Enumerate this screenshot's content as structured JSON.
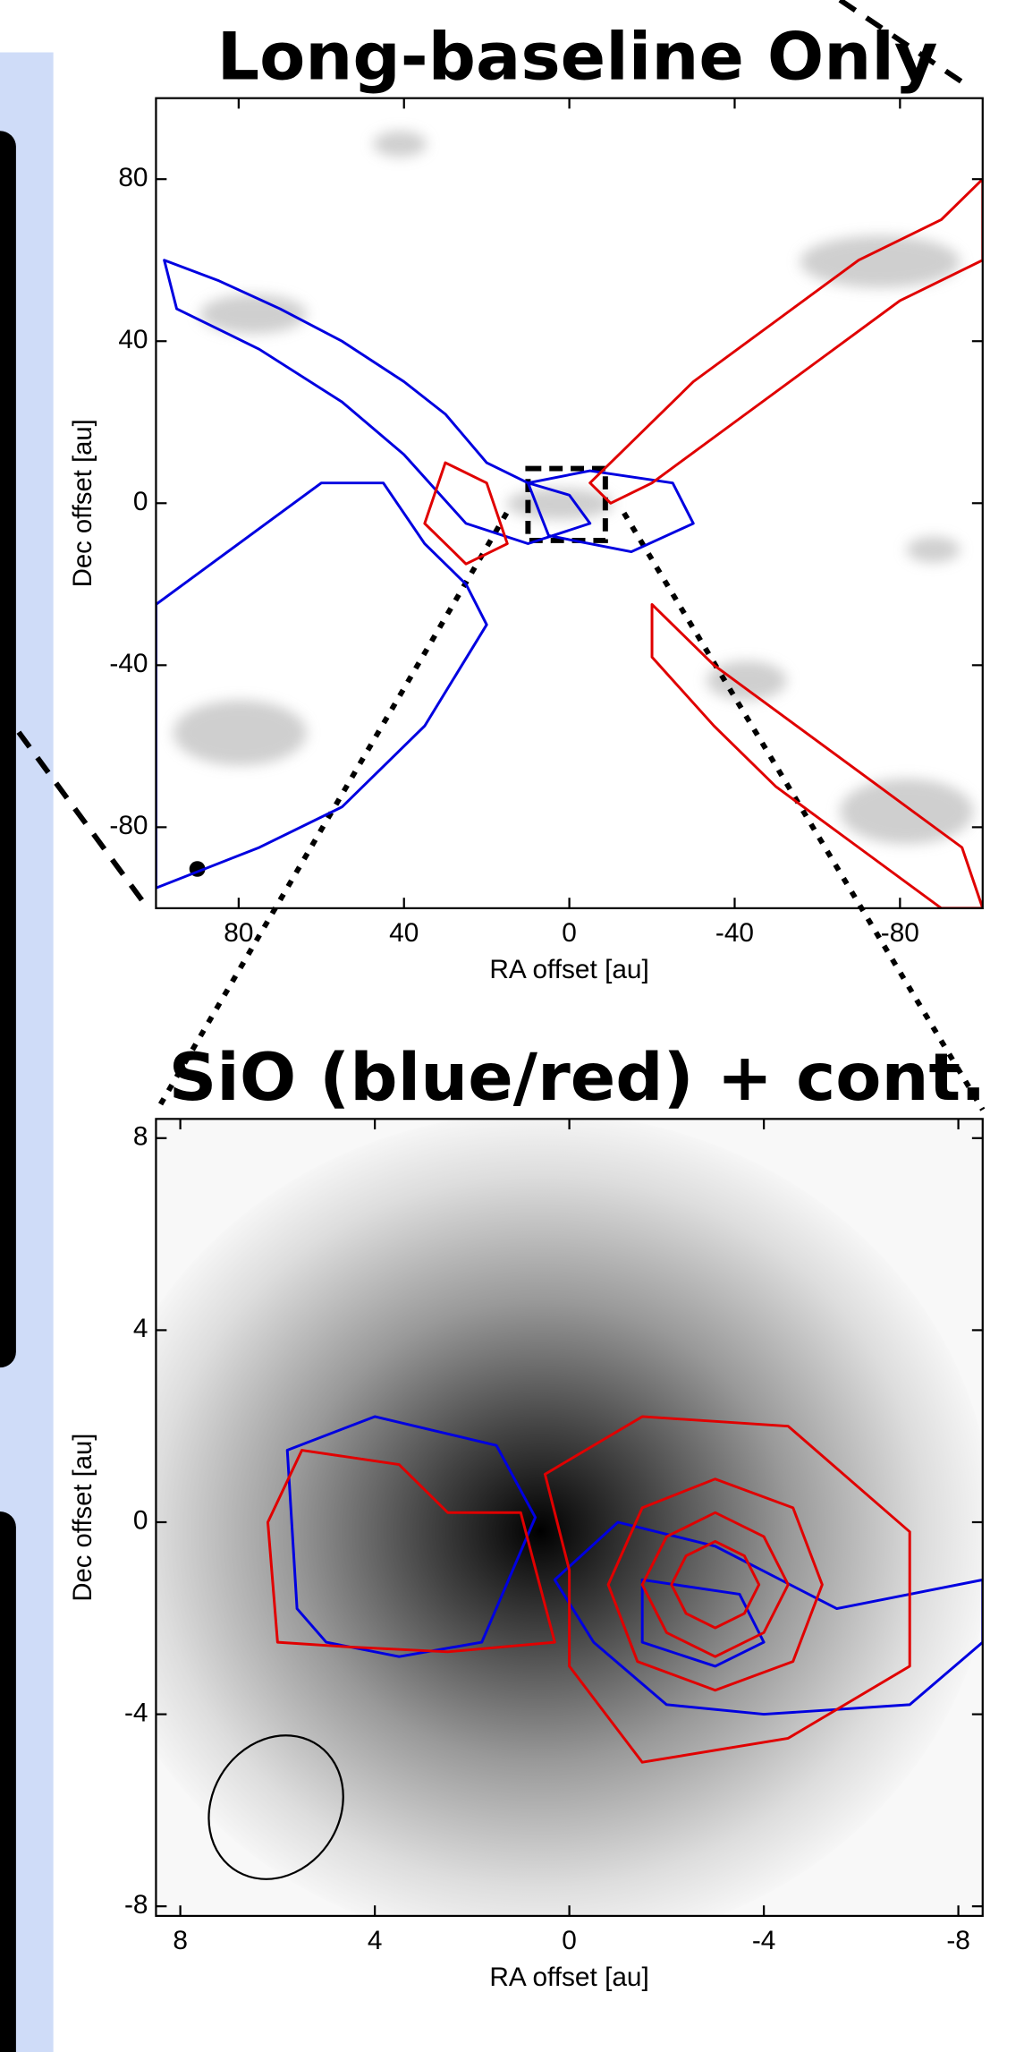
{
  "chart_data": [
    {
      "type": "contour",
      "title": "Long-baseline Only",
      "xlabel": "RA offset [au]",
      "ylabel": "Dec offset [au]",
      "xlim": [
        100,
        -100
      ],
      "ylim": [
        -100,
        100
      ],
      "xticks": [
        80,
        40,
        0,
        -40,
        -80
      ],
      "yticks": [
        -80,
        -40,
        0,
        40,
        80
      ],
      "series": [
        {
          "color": "#0000e0",
          "x": [
            98,
            85,
            70,
            55,
            40,
            30,
            20,
            10,
            0,
            -5,
            10,
            25,
            40,
            55,
            75,
            95
          ],
          "y": [
            60,
            55,
            48,
            40,
            30,
            22,
            10,
            5,
            2,
            -5,
            -10,
            -5,
            12,
            25,
            38,
            48
          ]
        },
        {
          "color": "#0000e0",
          "x": [
            100,
            80,
            60,
            45,
            35,
            25,
            20,
            35,
            55,
            75,
            100
          ],
          "y": [
            -25,
            -10,
            5,
            5,
            -10,
            -20,
            -30,
            -55,
            -75,
            -85,
            -95
          ]
        },
        {
          "color": "#0000e0",
          "x": [
            10,
            -5,
            -25,
            -30,
            -15,
            5
          ],
          "y": [
            5,
            8,
            5,
            -5,
            -12,
            -8
          ]
        },
        {
          "color": "#e00000",
          "x": [
            -5,
            -15,
            -30,
            -50,
            -70,
            -90,
            -100,
            -100,
            -80,
            -60,
            -40,
            -20,
            -10
          ],
          "y": [
            5,
            15,
            30,
            45,
            60,
            70,
            80,
            60,
            50,
            35,
            20,
            5,
            0
          ]
        },
        {
          "color": "#e00000",
          "x": [
            -20,
            -35,
            -55,
            -75,
            -95,
            -100,
            -90,
            -70,
            -50,
            -35,
            -20
          ],
          "y": [
            -25,
            -40,
            -55,
            -70,
            -85,
            -100,
            -100,
            -85,
            -70,
            -55,
            -38
          ]
        },
        {
          "color": "#e00000",
          "x": [
            30,
            20,
            15,
            25,
            35
          ],
          "y": [
            10,
            5,
            -10,
            -15,
            -5
          ]
        }
      ]
    },
    {
      "type": "contour",
      "title": "SiO (blue/red) + cont.",
      "xlabel": "RA offset [au]",
      "ylabel": "Dec offset [au]",
      "xlim": [
        8.5,
        -8.5
      ],
      "ylim": [
        -8.2,
        8.4
      ],
      "xticks": [
        8,
        4,
        0,
        -4,
        -8
      ],
      "yticks": [
        -8,
        -4,
        0,
        4,
        8
      ],
      "series": [
        {
          "color": "#0000e0",
          "x": [
            5.6,
            5.8,
            4,
            1.5,
            0.7,
            1.8,
            3.5,
            5
          ],
          "y": [
            -1.8,
            1.5,
            2.2,
            1.6,
            0.1,
            -2.5,
            -2.8,
            -2.5
          ]
        },
        {
          "color": "#0000e0",
          "x": [
            0.3,
            -1,
            -3,
            -5.5,
            -8.5,
            -8.5,
            -7,
            -4,
            -2,
            -0.5
          ],
          "y": [
            -1.2,
            0,
            -0.5,
            -1.8,
            -1.2,
            -2.5,
            -3.8,
            -4,
            -3.8,
            -2.5
          ]
        },
        {
          "color": "#0000e0",
          "x": [
            -1.5,
            -3.5,
            -4,
            -3,
            -1.5
          ],
          "y": [
            -1.2,
            -1.5,
            -2.5,
            -3,
            -2.5
          ]
        },
        {
          "color": "#e00000",
          "x": [
            6,
            6.2,
            5.5,
            3.5,
            2.5,
            1,
            0.3,
            2.5,
            4.5
          ],
          "y": [
            -2.5,
            0,
            1.5,
            1.2,
            0.2,
            0.2,
            -2.5,
            -2.7,
            -2.6
          ]
        },
        {
          "color": "#e00000",
          "x": [
            0,
            0.5,
            -1.5,
            -4.5,
            -7,
            -7,
            -4.5,
            -1.5,
            0
          ],
          "y": [
            -1,
            1,
            2.2,
            2,
            -0.2,
            -3,
            -4.5,
            -5,
            -3
          ]
        },
        {
          "color": "#e00000",
          "x": [
            -0.8,
            -1.5,
            -3,
            -4.6,
            -5.2,
            -4.6,
            -3,
            -1.4
          ],
          "y": [
            -1.3,
            0.3,
            0.9,
            0.3,
            -1.3,
            -2.9,
            -3.5,
            -2.9
          ]
        },
        {
          "color": "#e00000",
          "x": [
            -1.5,
            -2,
            -3,
            -4,
            -4.5,
            -4,
            -3,
            -2
          ],
          "y": [
            -1.3,
            -0.3,
            0.2,
            -0.3,
            -1.3,
            -2.3,
            -2.8,
            -2.3
          ]
        },
        {
          "color": "#e00000",
          "x": [
            -2.1,
            -2.4,
            -3,
            -3.6,
            -3.9,
            -3.6,
            -3,
            -2.4
          ],
          "y": [
            -1.3,
            -0.7,
            -0.4,
            -0.7,
            -1.3,
            -1.9,
            -2.2,
            -1.9
          ]
        }
      ]
    }
  ]
}
